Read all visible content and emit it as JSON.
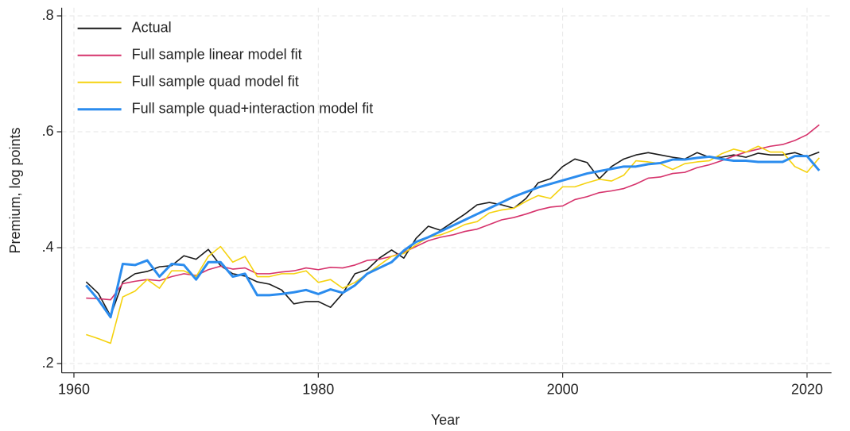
{
  "chart_data": {
    "type": "line",
    "xlabel": "Year",
    "ylabel": "Premium, log points",
    "xlim": [
      1959,
      2022
    ],
    "ylim": [
      0.184,
      0.814
    ],
    "xticks": [
      1960,
      1980,
      2000,
      2020
    ],
    "yticks": [
      {
        "value": 0.2,
        "label": ".2"
      },
      {
        "value": 0.4,
        "label": ".4"
      },
      {
        "value": 0.6,
        "label": ".6"
      },
      {
        "value": 0.8,
        "label": ".8"
      }
    ],
    "grid": true,
    "legend": "top-left",
    "x": [
      1961,
      1962,
      1963,
      1964,
      1965,
      1966,
      1967,
      1968,
      1969,
      1970,
      1971,
      1972,
      1973,
      1974,
      1975,
      1976,
      1977,
      1978,
      1979,
      1980,
      1981,
      1982,
      1983,
      1984,
      1985,
      1986,
      1987,
      1988,
      1989,
      1990,
      1991,
      1992,
      1993,
      1994,
      1995,
      1996,
      1997,
      1998,
      1999,
      2000,
      2001,
      2002,
      2003,
      2004,
      2005,
      2006,
      2007,
      2008,
      2009,
      2010,
      2011,
      2012,
      2013,
      2014,
      2015,
      2016,
      2017,
      2018,
      2019,
      2020,
      2021
    ],
    "series": [
      {
        "name": "Actual",
        "color": "#1a1a1a",
        "values": [
          0.341,
          0.321,
          0.282,
          0.341,
          0.355,
          0.359,
          0.367,
          0.369,
          0.386,
          0.38,
          0.397,
          0.369,
          0.355,
          0.351,
          0.341,
          0.337,
          0.327,
          0.303,
          0.307,
          0.307,
          0.297,
          0.321,
          0.355,
          0.362,
          0.382,
          0.396,
          0.382,
          0.416,
          0.437,
          0.43,
          0.444,
          0.458,
          0.474,
          0.478,
          0.474,
          0.468,
          0.485,
          0.512,
          0.519,
          0.54,
          0.553,
          0.547,
          0.519,
          0.54,
          0.553,
          0.56,
          0.564,
          0.56,
          0.556,
          0.553,
          0.564,
          0.556,
          0.556,
          0.56,
          0.556,
          0.563,
          0.56,
          0.56,
          0.564,
          0.557,
          0.565
        ]
      },
      {
        "name": "Full sample linear model fit",
        "color": "#d6336c",
        "values": [
          0.313,
          0.312,
          0.31,
          0.338,
          0.342,
          0.345,
          0.343,
          0.35,
          0.355,
          0.352,
          0.362,
          0.368,
          0.363,
          0.365,
          0.355,
          0.355,
          0.358,
          0.36,
          0.365,
          0.362,
          0.366,
          0.365,
          0.37,
          0.378,
          0.38,
          0.385,
          0.392,
          0.402,
          0.412,
          0.418,
          0.422,
          0.428,
          0.432,
          0.44,
          0.448,
          0.452,
          0.458,
          0.465,
          0.47,
          0.472,
          0.483,
          0.488,
          0.495,
          0.498,
          0.502,
          0.51,
          0.52,
          0.522,
          0.528,
          0.53,
          0.538,
          0.543,
          0.55,
          0.558,
          0.565,
          0.57,
          0.575,
          0.578,
          0.585,
          0.595,
          0.612
        ]
      },
      {
        "name": "Full sample quad model fit",
        "color": "#f5d20f",
        "values": [
          0.25,
          0.243,
          0.235,
          0.315,
          0.325,
          0.345,
          0.33,
          0.36,
          0.36,
          0.35,
          0.385,
          0.402,
          0.375,
          0.385,
          0.35,
          0.35,
          0.355,
          0.355,
          0.36,
          0.34,
          0.345,
          0.33,
          0.34,
          0.355,
          0.37,
          0.385,
          0.39,
          0.405,
          0.418,
          0.422,
          0.43,
          0.44,
          0.445,
          0.46,
          0.465,
          0.468,
          0.48,
          0.49,
          0.485,
          0.505,
          0.505,
          0.512,
          0.518,
          0.515,
          0.525,
          0.55,
          0.548,
          0.545,
          0.535,
          0.545,
          0.548,
          0.55,
          0.562,
          0.57,
          0.565,
          0.575,
          0.565,
          0.565,
          0.54,
          0.53,
          0.555
        ]
      },
      {
        "name": "Full sample quad+interaction model fit",
        "color": "#2b8cee",
        "values": [
          0.335,
          0.31,
          0.28,
          0.372,
          0.37,
          0.378,
          0.35,
          0.372,
          0.37,
          0.345,
          0.375,
          0.375,
          0.35,
          0.355,
          0.318,
          0.318,
          0.32,
          0.323,
          0.327,
          0.32,
          0.328,
          0.322,
          0.335,
          0.355,
          0.365,
          0.375,
          0.395,
          0.41,
          0.418,
          0.428,
          0.438,
          0.448,
          0.458,
          0.468,
          0.478,
          0.488,
          0.496,
          0.504,
          0.51,
          0.516,
          0.522,
          0.528,
          0.532,
          0.536,
          0.54,
          0.54,
          0.544,
          0.546,
          0.552,
          0.552,
          0.555,
          0.557,
          0.553,
          0.55,
          0.55,
          0.548,
          0.548,
          0.548,
          0.558,
          0.558,
          0.533
        ]
      }
    ]
  }
}
